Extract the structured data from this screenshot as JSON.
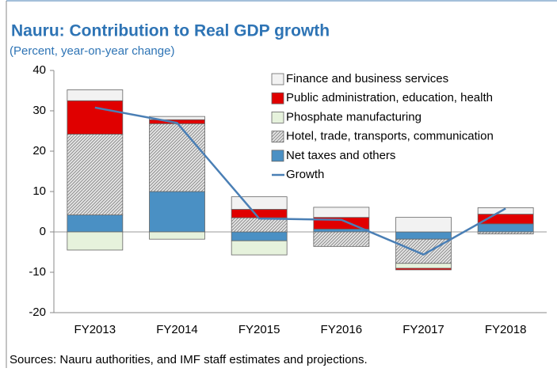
{
  "chart_data": {
    "type": "stacked_bar_line",
    "title": "Nauru: Contribution to Real GDP growth",
    "subtitle": "(Percent, year-on-year change)",
    "source": "Sources: Nauru authorities, and IMF staff estimates and projections.",
    "categories": [
      "FY2013",
      "FY2014",
      "FY2015",
      "FY2016",
      "FY2017",
      "FY2018"
    ],
    "series": [
      {
        "name": "Finance and business services",
        "color": "#f2f2f2",
        "values": [
          2.7,
          0.8,
          3.1,
          2.5,
          3.6,
          1.6
        ]
      },
      {
        "name": "Public administration, education, health",
        "color": "#e00000",
        "values": [
          8.3,
          1.0,
          2.1,
          2.9,
          -0.4,
          2.4
        ]
      },
      {
        "name": "Phosphate manufacturing",
        "color": "#e6f2dc",
        "values": [
          -4.5,
          -1.8,
          -3.5,
          0,
          -1.2,
          0
        ]
      },
      {
        "name": "Hotel, trade, transports, communication",
        "color": "#a6a6a6",
        "values": [
          20,
          16.8,
          3.5,
          -3.6,
          -6,
          -0.5
        ]
      },
      {
        "name": "Net taxes and others",
        "color": "#4a90c4",
        "values": [
          4.2,
          10,
          -2.2,
          0.7,
          -1.8,
          2.0
        ]
      },
      {
        "name": "Growth",
        "type": "line",
        "color": "#4a7fb5",
        "values": [
          30.8,
          27,
          3.3,
          3.0,
          -5.6,
          5.8
        ]
      }
    ],
    "ylim": [
      -20,
      40
    ],
    "yticks": [
      -20,
      -10,
      0,
      10,
      20,
      30,
      40
    ],
    "legend": "upper right"
  }
}
